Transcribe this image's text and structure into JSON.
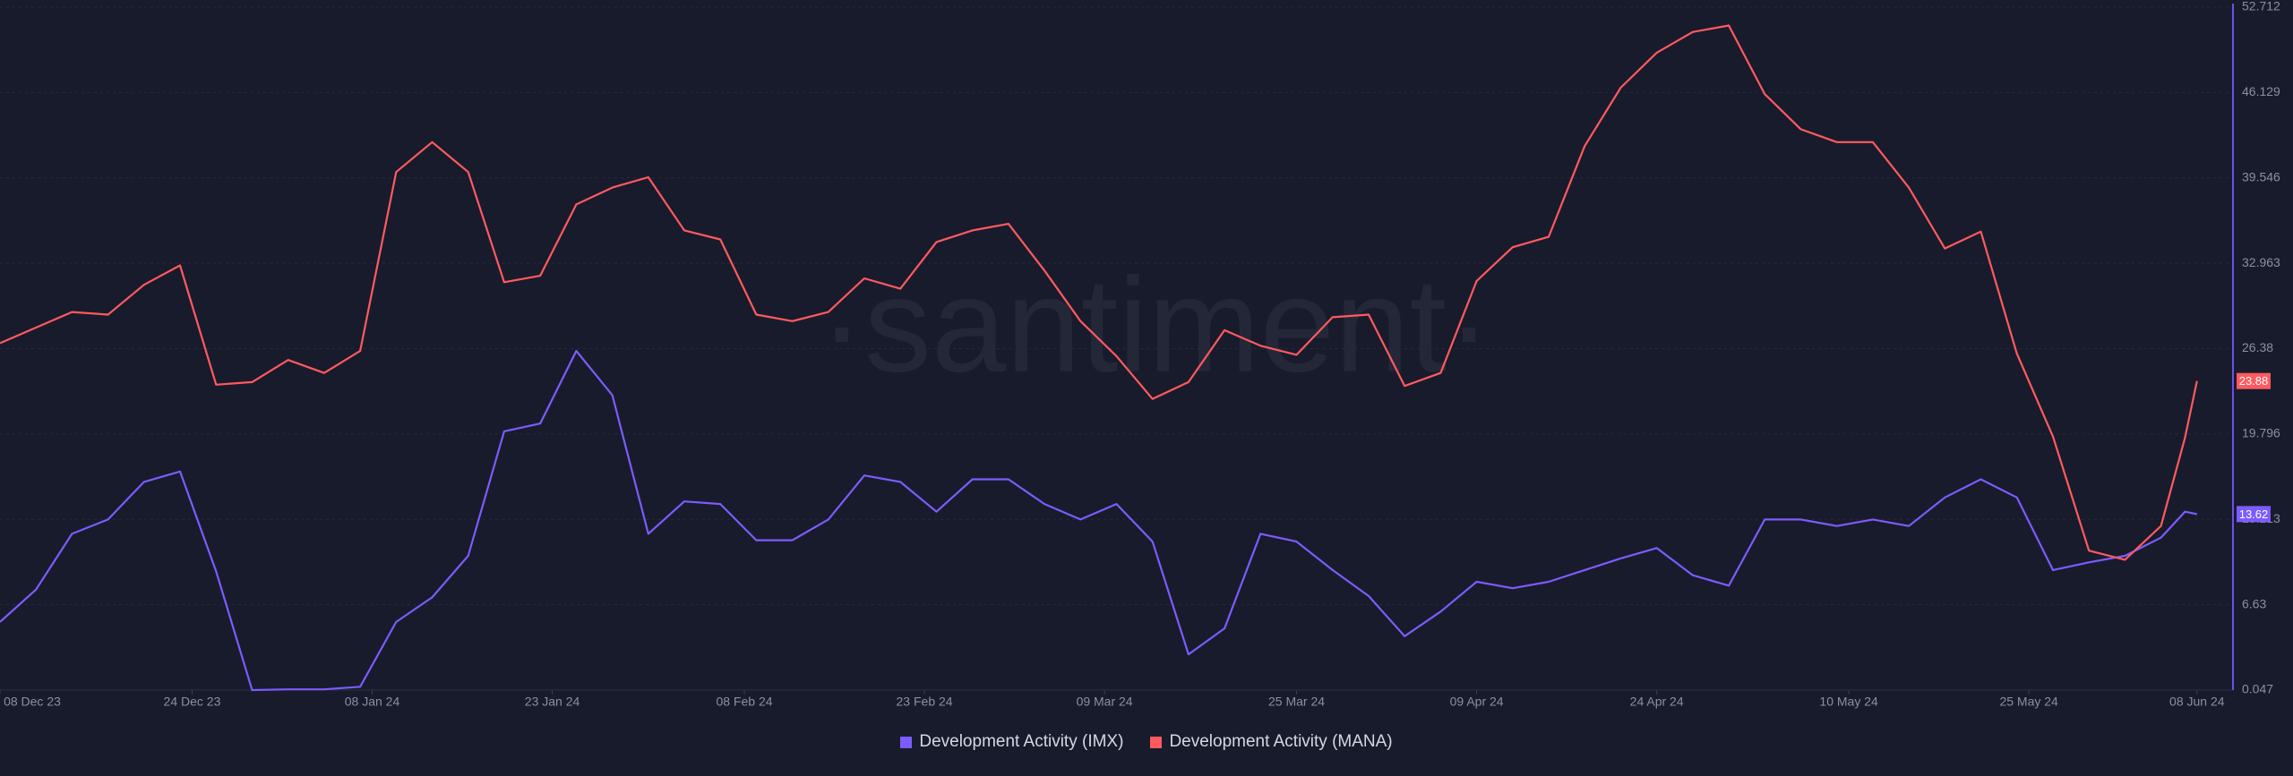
{
  "chart_data": {
    "type": "line",
    "watermark": "·santiment·",
    "x": [
      "2023-12-08",
      "2023-12-11",
      "2023-12-14",
      "2023-12-17",
      "2023-12-20",
      "2023-12-23",
      "2023-12-26",
      "2023-12-29",
      "2024-01-01",
      "2024-01-04",
      "2024-01-07",
      "2024-01-10",
      "2024-01-13",
      "2024-01-16",
      "2024-01-19",
      "2024-01-22",
      "2024-01-25",
      "2024-01-28",
      "2024-01-31",
      "2024-02-03",
      "2024-02-06",
      "2024-02-09",
      "2024-02-12",
      "2024-02-15",
      "2024-02-18",
      "2024-02-21",
      "2024-02-24",
      "2024-02-27",
      "2024-03-01",
      "2024-03-04",
      "2024-03-07",
      "2024-03-10",
      "2024-03-13",
      "2024-03-16",
      "2024-03-19",
      "2024-03-22",
      "2024-03-25",
      "2024-03-28",
      "2024-03-31",
      "2024-04-03",
      "2024-04-06",
      "2024-04-09",
      "2024-04-12",
      "2024-04-15",
      "2024-04-18",
      "2024-04-21",
      "2024-04-24",
      "2024-04-27",
      "2024-04-30",
      "2024-05-03",
      "2024-05-06",
      "2024-05-09",
      "2024-05-12",
      "2024-05-15",
      "2024-05-18",
      "2024-05-21",
      "2024-05-24",
      "2024-05-27",
      "2024-05-30",
      "2024-06-02",
      "2024-06-05",
      "2024-06-07",
      "2024-06-08"
    ],
    "series": [
      {
        "name": "Development Activity (IMX)",
        "color": "#7b5cff",
        "values": [
          5.3,
          7.8,
          12.1,
          13.2,
          16.1,
          16.9,
          9.2,
          0.05,
          0.1,
          0.1,
          0.3,
          5.3,
          7.2,
          10.4,
          20,
          20.6,
          26.2,
          22.8,
          12.1,
          14.6,
          14.4,
          11.6,
          11.6,
          13.2,
          16.6,
          16.1,
          13.8,
          16.3,
          16.3,
          14.4,
          13.2,
          14.4,
          11.5,
          2.8,
          4.8,
          12.1,
          11.5,
          9.3,
          7.3,
          4.2,
          6.1,
          8.4,
          7.9,
          8.4,
          9.3,
          10.2,
          11,
          8.9,
          8.1,
          13.2,
          13.2,
          12.7,
          13.2,
          12.7,
          14.9,
          16.3,
          14.9,
          9.3,
          9.9,
          10.4,
          11.8,
          13.8,
          13.62
        ]
      },
      {
        "name": "Development Activity (MANA)",
        "color": "#ff5a5f",
        "values": [
          26.8,
          28,
          29.2,
          29,
          31.3,
          32.8,
          23.6,
          23.8,
          25.5,
          24.5,
          26.2,
          40,
          42.3,
          40,
          31.5,
          32,
          37.5,
          38.8,
          39.6,
          35.5,
          34.8,
          29,
          28.5,
          29.2,
          31.8,
          31,
          34.6,
          35.5,
          36,
          32.4,
          28.5,
          25.8,
          22.5,
          23.8,
          27.8,
          26.6,
          25.9,
          28.8,
          29,
          23.5,
          24.5,
          31.6,
          34.2,
          35,
          42,
          46.5,
          49.2,
          50.8,
          51.3,
          46,
          43.3,
          42.3,
          42.3,
          38.8,
          34.1,
          35.4,
          26,
          19.6,
          10.8,
          10.1,
          12.7,
          19.5,
          23.88
        ]
      }
    ],
    "xlim": [
      "2023-12-08",
      "2024-06-11"
    ],
    "xticks": [
      {
        "value": "2023-12-08",
        "label": "08 Dec 23"
      },
      {
        "value": "2023-12-24",
        "label": "24 Dec 23"
      },
      {
        "value": "2024-01-08",
        "label": "08 Jan 24"
      },
      {
        "value": "2024-01-23",
        "label": "23 Jan 24"
      },
      {
        "value": "2024-02-08",
        "label": "08 Feb 24"
      },
      {
        "value": "2024-02-23",
        "label": "23 Feb 24"
      },
      {
        "value": "2024-03-09",
        "label": "09 Mar 24"
      },
      {
        "value": "2024-03-25",
        "label": "25 Mar 24"
      },
      {
        "value": "2024-04-09",
        "label": "09 Apr 24"
      },
      {
        "value": "2024-04-24",
        "label": "24 Apr 24"
      },
      {
        "value": "2024-05-10",
        "label": "10 May 24"
      },
      {
        "value": "2024-05-25",
        "label": "25 May 24"
      },
      {
        "value": "2024-06-08",
        "label": "08 Jun 24"
      }
    ],
    "ylim": [
      0.047,
      52.712
    ],
    "yticks": [
      0.047,
      6.63,
      13.213,
      19.796,
      26.38,
      32.963,
      39.546,
      46.129,
      52.712
    ],
    "grid": true,
    "legend": "bottom"
  }
}
